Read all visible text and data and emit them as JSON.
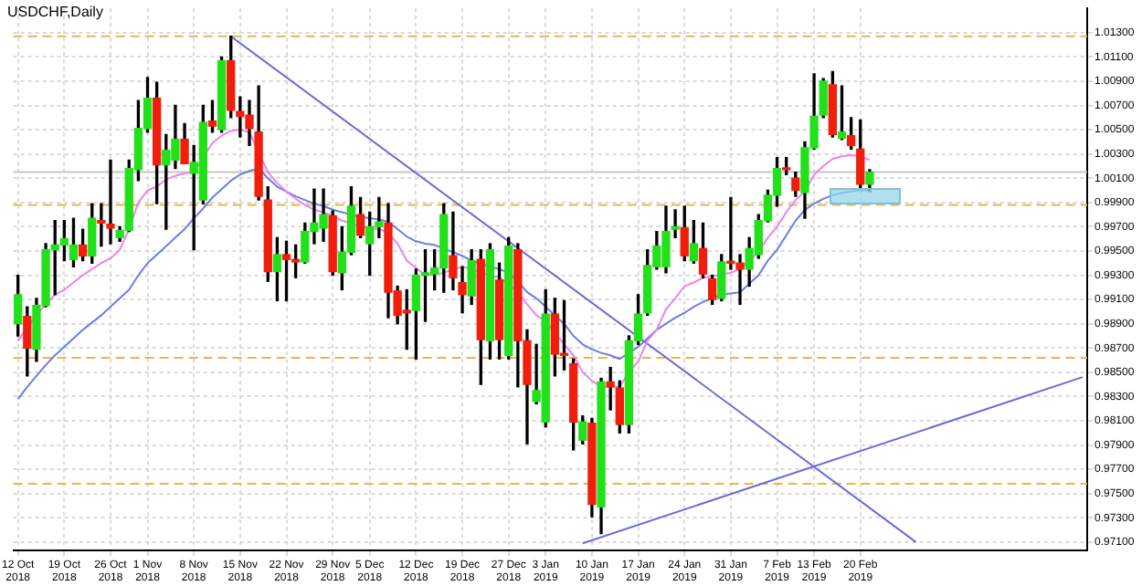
{
  "chart_data": {
    "type": "candlestick",
    "title": "USDCHF,Daily",
    "categories": [
      "12 Oct 2018",
      null,
      null,
      null,
      null,
      "19 Oct 2018",
      null,
      null,
      null,
      null,
      "26 Oct 2018",
      null,
      null,
      null,
      "1 Nov 2018",
      null,
      null,
      null,
      null,
      "8 Nov 2018",
      null,
      null,
      null,
      null,
      "15 Nov 2018",
      null,
      null,
      null,
      null,
      "22 Nov 2018",
      null,
      null,
      null,
      null,
      "29 Nov 2018",
      null,
      null,
      null,
      "5 Dec 2018",
      null,
      null,
      null,
      null,
      "12 Dec 2018",
      null,
      null,
      null,
      null,
      "19 Dec 2018",
      null,
      null,
      null,
      null,
      "27 Dec 2018",
      null,
      null,
      null,
      "3 Jan 2019",
      null,
      null,
      null,
      null,
      "10 Jan 2019",
      null,
      null,
      null,
      null,
      "17 Jan 2019",
      null,
      null,
      null,
      null,
      "24 Jan 2019",
      null,
      null,
      null,
      null,
      "31 Jan 2019",
      null,
      null,
      null,
      null,
      "7 Feb 2019",
      null,
      null,
      null,
      "13 Feb 2019",
      null,
      null,
      null,
      null,
      "20 Feb 2019",
      null,
      null,
      null,
      null,
      null,
      null,
      null,
      null,
      null,
      null,
      null,
      null,
      null,
      null,
      null,
      null,
      null,
      null,
      null,
      null,
      null,
      null,
      null,
      null
    ],
    "ohlc": [
      [
        0.989,
        0.993,
        0.988,
        0.9914
      ],
      [
        0.9896,
        0.9904,
        0.9847,
        0.987
      ],
      [
        0.9869,
        0.9911,
        0.9859,
        0.9905
      ],
      [
        0.9905,
        0.9956,
        0.9904,
        0.9951
      ],
      [
        0.9951,
        0.9975,
        0.9914,
        0.9955
      ],
      [
        0.9955,
        0.9975,
        0.9942,
        0.996
      ],
      [
        0.9943,
        0.9977,
        0.9937,
        0.9955
      ],
      [
        0.9955,
        0.9968,
        0.9942,
        0.9946
      ],
      [
        0.9946,
        0.9989,
        0.994,
        0.9977
      ],
      [
        0.9975,
        0.9989,
        0.9954,
        0.9973
      ],
      [
        0.9972,
        1.0025,
        0.9956,
        0.9969
      ],
      [
        0.9961,
        0.997,
        0.9958,
        0.9967
      ],
      [
        0.9967,
        1.0025,
        0.9966,
        1.0018
      ],
      [
        1.0017,
        1.0074,
        1.0008,
        1.0051
      ],
      [
        1.0051,
        1.0093,
        1.0048,
        1.0076
      ],
      [
        1.0076,
        1.0089,
        0.9989,
        1.0021
      ],
      [
        1.0021,
        1.0046,
        0.9968,
        1.0033
      ],
      [
        1.0025,
        1.007,
        1.0018,
        1.0042
      ],
      [
        1.0042,
        1.0055,
        1.0022,
        1.0022
      ],
      [
        1.0014,
        1.0037,
        0.9951,
        1.0023
      ],
      [
        0.9992,
        1.007,
        0.9989,
        1.0056
      ],
      [
        1.0057,
        1.0074,
        1.0048,
        1.0053
      ],
      [
        1.005,
        1.011,
        1.0048,
        1.0107
      ],
      [
        1.0107,
        1.0127,
        1.006,
        1.0066
      ],
      [
        1.0065,
        1.0077,
        1.0044,
        1.0061
      ],
      [
        1.0062,
        1.0074,
        1.0037,
        1.0051
      ],
      [
        1.0048,
        1.0086,
        0.9992,
        0.9995
      ],
      [
        0.9992,
        1.0003,
        0.9925,
        0.9933
      ],
      [
        0.9933,
        0.9961,
        0.9909,
        0.9947
      ],
      [
        0.9947,
        0.9958,
        0.9909,
        0.9943
      ],
      [
        0.9943,
        0.9955,
        0.9928,
        0.9941
      ],
      [
        0.9941,
        0.9973,
        0.994,
        0.9966
      ],
      [
        0.9966,
        1.0001,
        0.9956,
        0.9973
      ],
      [
        0.9969,
        1.0001,
        0.9958,
        0.998
      ],
      [
        0.9979,
        0.9983,
        0.993,
        0.9933
      ],
      [
        0.9932,
        0.997,
        0.9918,
        0.9949
      ],
      [
        0.9949,
        1.0003,
        0.9947,
        0.9987
      ],
      [
        0.998,
        0.9994,
        0.9961,
        0.9963
      ],
      [
        0.9956,
        0.9982,
        0.993,
        0.997
      ],
      [
        0.997,
        0.9994,
        0.9961,
        0.9974
      ],
      [
        0.9973,
        0.9989,
        0.9895,
        0.9916
      ],
      [
        0.9917,
        0.9921,
        0.989,
        0.9897
      ],
      [
        0.9901,
        0.9918,
        0.9869,
        0.9899
      ],
      [
        0.9901,
        0.9935,
        0.9861,
        0.993
      ],
      [
        0.993,
        0.9951,
        0.9892,
        0.9932
      ],
      [
        0.9931,
        0.9951,
        0.9918,
        0.9936
      ],
      [
        0.9936,
        0.9989,
        0.9916,
        0.998
      ],
      [
        0.9946,
        0.9982,
        0.9918,
        0.9928
      ],
      [
        0.9924,
        0.9937,
        0.9899,
        0.9914
      ],
      [
        0.9913,
        0.9951,
        0.9906,
        0.9942
      ],
      [
        0.9943,
        0.9951,
        0.984,
        0.9877
      ],
      [
        0.9876,
        0.9956,
        0.9861,
        0.9951
      ],
      [
        0.9926,
        0.994,
        0.9861,
        0.9877
      ],
      [
        0.9864,
        0.9961,
        0.9861,
        0.9954
      ],
      [
        0.9951,
        0.9956,
        0.9838,
        0.9876
      ],
      [
        0.9876,
        0.9885,
        0.9791,
        0.984
      ],
      [
        0.9826,
        0.9873,
        0.9824,
        0.9835
      ],
      [
        0.9809,
        0.9918,
        0.9805,
        0.9898
      ],
      [
        0.9898,
        0.9911,
        0.9847,
        0.9865
      ],
      [
        0.9865,
        0.9909,
        0.9852,
        0.9864
      ],
      [
        0.9857,
        0.9861,
        0.9786,
        0.9809
      ],
      [
        0.9794,
        0.9814,
        0.9791,
        0.9809
      ],
      [
        0.9808,
        0.9812,
        0.9731,
        0.9741
      ],
      [
        0.9739,
        0.9845,
        0.9717,
        0.9842
      ],
      [
        0.9842,
        0.9854,
        0.9819,
        0.9838
      ],
      [
        0.9837,
        0.9843,
        0.98,
        0.9807
      ],
      [
        0.9807,
        0.988,
        0.98,
        0.9876
      ],
      [
        0.9876,
        0.9914,
        0.9873,
        0.9898
      ],
      [
        0.9899,
        0.9951,
        0.9897,
        0.9938
      ],
      [
        0.9937,
        0.9966,
        0.9935,
        0.9954
      ],
      [
        0.9937,
        0.9987,
        0.9932,
        0.9966
      ],
      [
        0.9968,
        0.9984,
        0.9961,
        0.997
      ],
      [
        0.9969,
        0.9987,
        0.9942,
        0.9946
      ],
      [
        0.9942,
        0.9975,
        0.994,
        0.9956
      ],
      [
        0.9952,
        0.9973,
        0.9928,
        0.9931
      ],
      [
        0.9927,
        0.993,
        0.9906,
        0.991
      ],
      [
        0.9911,
        0.9947,
        0.9909,
        0.9941
      ],
      [
        0.9941,
        0.9994,
        0.9935,
        0.994
      ],
      [
        0.994,
        0.9947,
        0.9906,
        0.9935
      ],
      [
        0.9935,
        0.9961,
        0.9921,
        0.9952
      ],
      [
        0.9947,
        0.998,
        0.9944,
        0.9975
      ],
      [
        0.9975,
        1.0,
        0.9974,
        0.9996
      ],
      [
        0.9996,
        1.0027,
        0.9987,
        1.0018
      ],
      [
        1.0018,
        1.0027,
        1.0013,
        1.0017
      ],
      [
        1.001,
        1.0015,
        0.9995,
        1.0
      ],
      [
        0.9998,
        1.004,
        0.9977,
        1.0035
      ],
      [
        1.0035,
        1.0096,
        1.0034,
        1.0061
      ],
      [
        1.0062,
        1.0092,
        1.006,
        1.009
      ],
      [
        1.0087,
        1.0098,
        1.0044,
        1.0046
      ],
      [
        1.0043,
        1.0086,
        1.0042,
        1.0048
      ],
      [
        1.0045,
        1.006,
        1.0034,
        1.0037
      ],
      [
        1.0034,
        1.0058,
        1.0001,
        1.0005
      ],
      [
        1.0005,
        1.0017,
        0.9999,
        1.0015
      ],
      null,
      null,
      null,
      null,
      null,
      null,
      null,
      null,
      null,
      null,
      null,
      null,
      null,
      null,
      null,
      null,
      null,
      null,
      null,
      null,
      null,
      null,
      null
    ],
    "colors": [
      "#22e01a",
      "#f01e0a",
      "#22e01a",
      "#22e01a",
      "#22e01a",
      "#22e01a",
      "#22e01a",
      "#f01e0a",
      "#22e01a",
      "#f01e0a",
      "#f01e0a",
      "#22e01a",
      "#22e01a",
      "#22e01a",
      "#22e01a",
      "#f01e0a",
      "#22e01a",
      "#22e01a",
      "#f01e0a",
      "#22e01a",
      "#22e01a",
      "#f01e0a",
      "#22e01a",
      "#f01e0a",
      "#f01e0a",
      "#f01e0a",
      "#f01e0a",
      "#f01e0a",
      "#22e01a",
      "#f01e0a",
      "#f01e0a",
      "#22e01a",
      "#22e01a",
      "#22e01a",
      "#f01e0a",
      "#22e01a",
      "#22e01a",
      "#f01e0a",
      "#22e01a",
      "#22e01a",
      "#f01e0a",
      "#f01e0a",
      "#f01e0a",
      "#22e01a",
      "#22e01a",
      "#22e01a",
      "#22e01a",
      "#f01e0a",
      "#f01e0a",
      "#22e01a",
      "#f01e0a",
      "#22e01a",
      "#f01e0a",
      "#22e01a",
      "#f01e0a",
      "#f01e0a",
      "#22e01a",
      "#22e01a",
      "#f01e0a",
      "#f01e0a",
      "#f01e0a",
      "#22e01a",
      "#f01e0a",
      "#22e01a",
      "#f01e0a",
      "#f01e0a",
      "#22e01a",
      "#22e01a",
      "#22e01a",
      "#22e01a",
      "#22e01a",
      "#22e01a",
      "#f01e0a",
      "#22e01a",
      "#f01e0a",
      "#f01e0a",
      "#22e01a",
      "#f01e0a",
      "#f01e0a",
      "#22e01a",
      "#22e01a",
      "#22e01a",
      "#22e01a",
      "#f01e0a",
      "#f01e0a",
      "#22e01a",
      "#22e01a",
      "#22e01a",
      "#f01e0a",
      "#22e01a",
      "#f01e0a",
      "#f01e0a",
      "#22e01a",
      null,
      null,
      null,
      null,
      null,
      null,
      null,
      null,
      null,
      null,
      null,
      null,
      null,
      null,
      null,
      null,
      null,
      null,
      null,
      null,
      null,
      null,
      null
    ],
    "series": [
      {
        "type": "line",
        "color": "#ee82ee",
        "values": [
          0.9876,
          0.9887,
          0.9897,
          0.9906,
          0.9914,
          0.9918,
          0.9924,
          0.993,
          0.9935,
          0.994,
          0.9944,
          0.9951,
          0.9968,
          0.999,
          1.0,
          1.0003,
          1.0009,
          1.0012,
          1.0014,
          1.0015,
          null,
          1.0039,
          1.0045,
          1.0049,
          1.005,
          1.0048,
          null,
          1.0015,
          1.0006,
          0.9999,
          0.9993,
          0.9988,
          0.9984,
          0.9982,
          0.9979,
          0.9975,
          0.9973,
          0.997,
          0.9969,
          0.9968,
          0.9965,
          0.9956,
          0.9942,
          0.9936,
          0.993,
          0.9931,
          0.9932,
          0.9935,
          0.9937,
          0.9935,
          null,
          0.993,
          0.9928,
          0.9923,
          0.9916,
          0.9906,
          0.9897,
          0.9892,
          0.9883,
          0.9873,
          0.9864,
          0.985,
          0.9843,
          0.9838,
          0.9838,
          0.9838,
          0.985,
          0.9859,
          0.9876,
          0.9885,
          0.9902,
          0.9911,
          0.9921,
          0.9924,
          0.9928,
          0.9929,
          0.9931,
          0.9932,
          0.9935,
          0.9942,
          0.9949,
          0.9961,
          0.997,
          0.9982,
          0.9992,
          0.9999,
          1.0013,
          1.002,
          1.0026,
          1.0028,
          1.0029,
          1.0028,
          1.0025,
          null,
          null,
          null,
          null,
          null,
          null,
          null,
          null,
          null,
          null,
          null,
          null,
          null,
          null,
          null,
          null,
          null,
          null,
          null,
          null,
          null,
          null,
          null
        ]
      },
      {
        "type": "line",
        "color": "#6a7ee6",
        "values": [
          0.9828,
          0.9838,
          0.9847,
          0.9856,
          0.9864,
          0.9871,
          0.9878,
          0.9885,
          0.9891,
          0.9897,
          0.9904,
          0.9911,
          0.9918,
          0.993,
          0.994,
          0.9947,
          0.9954,
          0.9961,
          0.9968,
          0.9977,
          0.9985,
          0.9994,
          1.0001,
          1.0008,
          1.0013,
          1.0016,
          1.0018,
          1.001,
          1.0003,
          0.9999,
          0.9995,
          0.9992,
          0.9989,
          0.9987,
          0.9984,
          0.9982,
          0.998,
          0.9978,
          0.9977,
          0.9976,
          0.9974,
          0.9968,
          0.9962,
          0.9958,
          0.9956,
          0.9955,
          0.9952,
          0.9949,
          0.9946,
          0.9942,
          null,
          0.9937,
          0.9935,
          0.9932,
          0.9925,
          0.9916,
          0.9911,
          0.9904,
          0.9897,
          0.989,
          0.988,
          0.9873,
          0.9869,
          0.9866,
          0.9864,
          0.9861,
          0.9866,
          0.9871,
          0.9878,
          0.9885,
          0.989,
          0.9895,
          0.9899,
          0.9904,
          0.9908,
          0.9911,
          0.9914,
          0.9915,
          0.9916,
          0.9923,
          0.993,
          0.9942,
          0.9951,
          0.9963,
          0.9975,
          0.9984,
          0.9989,
          0.9993,
          0.9996,
          0.9998,
          0.9999,
          1.0,
          1.0,
          null,
          null,
          null,
          null,
          null,
          null,
          null,
          null,
          null,
          null,
          null,
          null,
          null,
          null,
          null,
          null,
          null,
          null,
          null,
          null,
          null,
          null,
          null
        ]
      },
      {
        "type": "line",
        "color": "#6b6bd6",
        "values": [
          null,
          null,
          null,
          null,
          null,
          null,
          null,
          null,
          null,
          null,
          null,
          null,
          null,
          null,
          null,
          null,
          null,
          null,
          null,
          null,
          null,
          null,
          null,
          1.0127,
          null,
          null,
          null,
          null,
          null,
          null,
          null,
          null,
          null,
          null,
          null,
          null,
          null,
          null,
          null,
          null,
          null,
          null,
          null,
          null,
          null,
          null,
          null,
          null,
          null,
          null,
          null,
          null,
          null,
          null,
          null,
          null,
          null,
          null,
          null,
          null,
          null,
          null,
          null,
          null,
          null,
          null,
          null,
          null,
          null,
          null,
          null,
          null,
          null,
          null,
          null,
          null,
          null,
          null,
          null,
          null,
          null,
          null,
          null,
          null,
          null,
          null,
          null,
          null,
          null,
          null,
          null,
          null,
          null,
          null,
          null,
          null,
          null,
          0.971,
          null,
          null,
          null,
          null,
          null,
          null,
          null,
          null,
          null,
          null,
          null,
          null,
          null,
          null,
          null,
          null,
          null,
          null
        ]
      },
      {
        "type": "line",
        "color": "#6b6bd6",
        "values": [
          null,
          null,
          null,
          null,
          null,
          null,
          null,
          null,
          null,
          null,
          null,
          null,
          null,
          null,
          null,
          null,
          null,
          null,
          null,
          null,
          null,
          null,
          null,
          null,
          null,
          null,
          null,
          null,
          null,
          null,
          null,
          null,
          null,
          null,
          null,
          null,
          null,
          null,
          null,
          null,
          null,
          null,
          null,
          null,
          null,
          null,
          null,
          null,
          null,
          null,
          null,
          null,
          null,
          null,
          null,
          null,
          null,
          null,
          null,
          null,
          null,
          0.9709,
          null,
          null,
          null,
          null,
          null,
          null,
          null,
          null,
          null,
          null,
          null,
          null,
          null,
          null,
          null,
          null,
          null,
          null,
          null,
          null,
          null,
          null,
          null,
          null,
          null,
          null,
          null,
          null,
          null,
          null,
          null,
          null,
          null,
          null,
          null,
          null,
          null,
          null,
          null,
          null,
          null,
          null,
          null,
          null,
          null,
          null,
          null,
          null,
          null,
          null,
          null,
          null,
          null,
          0.9846
        ]
      }
    ],
    "ylim": [
      0.9703,
      1.015
    ],
    "yticks": [
      {
        "value": 0.971,
        "label": "0.97100"
      },
      {
        "value": 0.973,
        "label": "0.97300"
      },
      {
        "value": 0.975,
        "label": "0.97500"
      },
      {
        "value": 0.977,
        "label": "0.97700"
      },
      {
        "value": 0.979,
        "label": "0.97900"
      },
      {
        "value": 0.981,
        "label": "0.98100"
      },
      {
        "value": 0.983,
        "label": "0.98300"
      },
      {
        "value": 0.985,
        "label": "0.98500"
      },
      {
        "value": 0.987,
        "label": "0.98700"
      },
      {
        "value": 0.989,
        "label": "0.98900"
      },
      {
        "value": 0.991,
        "label": "0.99100"
      },
      {
        "value": 0.993,
        "label": "0.99300"
      },
      {
        "value": 0.995,
        "label": "0.99500"
      },
      {
        "value": 0.997,
        "label": "0.99700"
      },
      {
        "value": 0.999,
        "label": "0.99900"
      },
      {
        "value": 1.001,
        "label": "1.00100"
      },
      {
        "value": 1.003,
        "label": "1.00300"
      },
      {
        "value": 1.005,
        "label": "1.00500"
      },
      {
        "value": 1.007,
        "label": "1.00700"
      },
      {
        "value": 1.009,
        "label": "1.00900"
      },
      {
        "value": 1.011,
        "label": "1.01100"
      },
      {
        "value": 1.013,
        "label": "1.01300"
      }
    ],
    "ref_lines": [
      {
        "axis": "y",
        "value": 1.0127,
        "color": "#e6b84a",
        "line_style": "dashed"
      },
      {
        "axis": "y",
        "value": 0.9988,
        "color": "#e6b84a",
        "line_style": "dashed"
      },
      {
        "axis": "y",
        "value": 0.9862,
        "color": "#e6b84a",
        "line_style": "dashed"
      },
      {
        "axis": "y",
        "value": 0.9758,
        "color": "#e6b84a",
        "line_style": "dashed"
      },
      {
        "axis": "y",
        "value": 1.0015,
        "color": "#c8c8c8",
        "line_style": "solid"
      }
    ],
    "grid": true,
    "legend": false
  }
}
